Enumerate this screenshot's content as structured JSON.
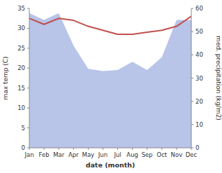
{
  "chart_data": {
    "type": "line",
    "categories": [
      "Jan",
      "Feb",
      "Mar",
      "Apr",
      "May",
      "Jun",
      "Jul",
      "Aug",
      "Sep",
      "Oct",
      "Nov",
      "Dec"
    ],
    "series": [
      {
        "type": "area",
        "axis": "y2",
        "color": "#b8c4e8",
        "values": [
          58.0,
          55.0,
          58.0,
          44.0,
          34.0,
          33.0,
          33.5,
          37.0,
          33.5,
          39.0,
          55.0,
          55.0
        ]
      },
      {
        "type": "line",
        "color": "#c0504d",
        "values": [
          32.5,
          31.0,
          32.5,
          32.0,
          30.5,
          29.5,
          28.5,
          28.5,
          29.0,
          29.5,
          30.5,
          33.0
        ]
      }
    ],
    "xlabel": "date (month)",
    "ylabel": "max temp (C)",
    "y2label": "med. precipitation (kg/m2)",
    "ylim": [
      0,
      35
    ],
    "yticks": [
      0,
      5,
      10,
      15,
      20,
      25,
      30,
      35
    ],
    "y2lim": [
      0,
      60
    ],
    "y2ticks": [
      0,
      10,
      20,
      30,
      40,
      50,
      60
    ]
  }
}
